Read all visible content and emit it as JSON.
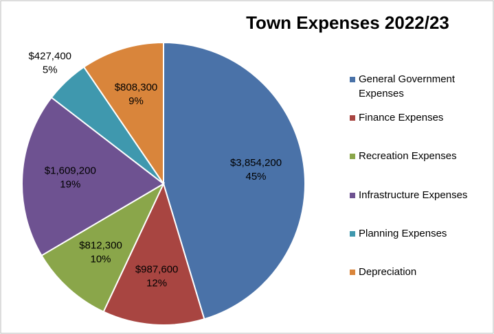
{
  "chart_data": {
    "type": "pie",
    "title": "Town Expenses 2022/23",
    "categories": [
      "General Government Expenses",
      "Finance Expenses",
      "Recreation Expenses",
      "Infrastructure Expenses",
      "Planning Expenses",
      "Depreciation"
    ],
    "values": [
      3854200,
      987600,
      812300,
      1609200,
      427400,
      808300
    ],
    "value_labels": [
      "$3,854,200",
      "$987,600",
      "$812,300",
      "$1,609,200",
      "$427,400",
      "$808,300"
    ],
    "percent_labels": [
      "45%",
      "12%",
      "10%",
      "19%",
      "5%",
      "9%"
    ],
    "colors": [
      "#4a72a8",
      "#a84541",
      "#8aa64a",
      "#6e5291",
      "#3f98ae",
      "#d9853b"
    ],
    "legend": "right"
  }
}
